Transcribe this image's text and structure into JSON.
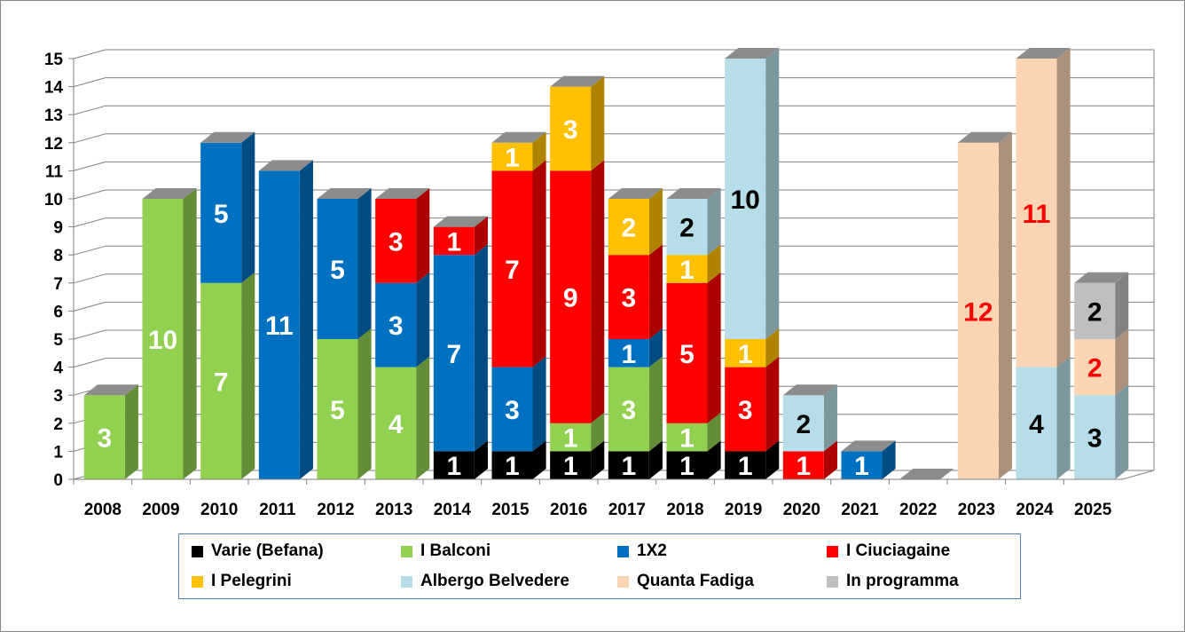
{
  "chart_data": {
    "type": "bar",
    "stacked": true,
    "style": "3d",
    "title": "",
    "xlabel": "",
    "ylabel": "",
    "ylim": [
      0,
      15
    ],
    "yticks": [
      "0",
      "1",
      "2",
      "3",
      "4",
      "5",
      "6",
      "7",
      "8",
      "9",
      "10",
      "11",
      "12",
      "13",
      "14",
      "15"
    ],
    "grid": true,
    "legend_position": "bottom",
    "categories": [
      "2008",
      "2009",
      "2010",
      "2011",
      "2012",
      "2013",
      "2014",
      "2015",
      "2016",
      "2017",
      "2018",
      "2019",
      "2020",
      "2021",
      "2022",
      "2023",
      "2024",
      "2025"
    ],
    "series": [
      {
        "name": "Varie (Befana)",
        "color": "#000000",
        "label_color": "#ffffff",
        "values": [
          0,
          0,
          0,
          0,
          0,
          0,
          1,
          1,
          1,
          1,
          1,
          1,
          0,
          0,
          0,
          0,
          0,
          0
        ]
      },
      {
        "name": "I Balconi",
        "color": "#92d050",
        "label_color": "#ffffff",
        "values": [
          3,
          10,
          7,
          0,
          5,
          4,
          0,
          0,
          1,
          3,
          1,
          0,
          0,
          0,
          0,
          0,
          0,
          0
        ]
      },
      {
        "name": "1X2",
        "color": "#0070c0",
        "label_color": "#ffffff",
        "values": [
          0,
          0,
          5,
          11,
          5,
          3,
          7,
          3,
          0,
          1,
          0,
          0,
          0,
          1,
          0,
          0,
          0,
          0
        ]
      },
      {
        "name": "I Ciuciagaine",
        "color": "#ff0000",
        "label_color": "#ffffff",
        "values": [
          0,
          0,
          0,
          0,
          0,
          3,
          1,
          7,
          9,
          3,
          5,
          3,
          1,
          0,
          0,
          0,
          0,
          0
        ]
      },
      {
        "name": "I Pelegrini",
        "color": "#ffc000",
        "label_color": "#ffffff",
        "values": [
          0,
          0,
          0,
          0,
          0,
          0,
          0,
          1,
          3,
          2,
          1,
          1,
          0,
          0,
          0,
          0,
          0,
          0
        ]
      },
      {
        "name": "Albergo Belvedere",
        "color": "#b7dee8",
        "label_color": "#000000",
        "values": [
          0,
          0,
          0,
          0,
          0,
          0,
          0,
          0,
          0,
          0,
          2,
          10,
          2,
          0,
          0,
          0,
          4,
          3
        ]
      },
      {
        "name": "Quanta Fadiga",
        "color": "#fcd5b5",
        "label_color": "#ff0000",
        "values": [
          0,
          0,
          0,
          0,
          0,
          0,
          0,
          0,
          0,
          0,
          0,
          0,
          0,
          0,
          0,
          12,
          11,
          2
        ]
      },
      {
        "name": "In programma",
        "color": "#bfbfbf",
        "label_color": "#000000",
        "values": [
          0,
          0,
          0,
          0,
          0,
          0,
          0,
          0,
          0,
          0,
          0,
          0,
          0,
          0,
          0,
          0,
          0,
          2
        ]
      }
    ]
  }
}
